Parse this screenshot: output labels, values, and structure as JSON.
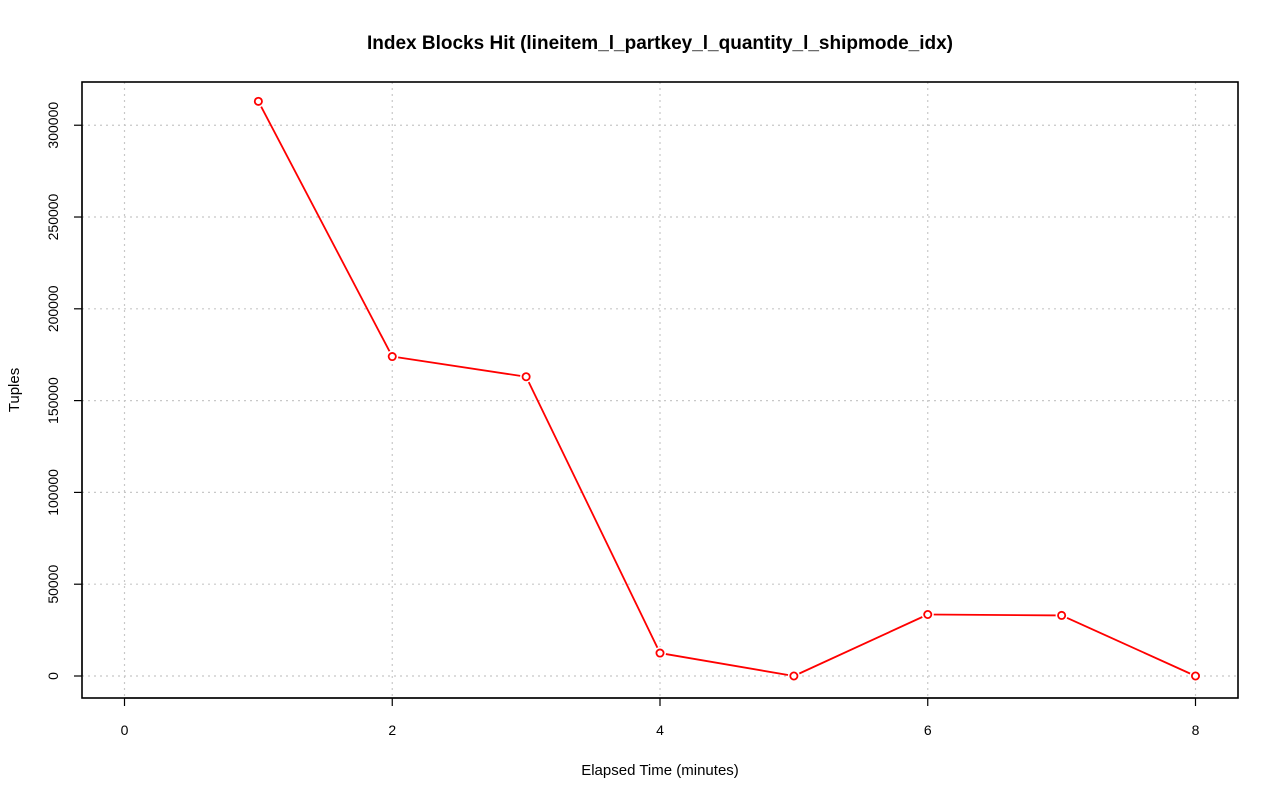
{
  "chart_data": {
    "type": "line",
    "title": "Index Blocks Hit (lineitem_l_partkey_l_quantity_l_shipmode_idx)",
    "xlabel": "Elapsed Time (minutes)",
    "ylabel": "Tuples",
    "xlim": [
      0,
      8
    ],
    "ylim": [
      0,
      320000
    ],
    "x_ticks": [
      0,
      2,
      4,
      6,
      8
    ],
    "y_ticks": [
      0,
      50000,
      100000,
      150000,
      200000,
      250000,
      300000
    ],
    "x_tick_labels": [
      "0",
      "2",
      "4",
      "6",
      "8"
    ],
    "y_tick_labels": [
      "0",
      "50000",
      "100000",
      "150000",
      "200000",
      "250000",
      "300000"
    ],
    "grid": true,
    "series": [
      {
        "color": "#ff0000",
        "marker": "open-circle",
        "x": [
          1,
          2,
          3,
          4,
          5,
          6,
          7,
          8
        ],
        "y": [
          313000,
          174000,
          163000,
          12500,
          0,
          33500,
          33000,
          0
        ]
      }
    ]
  }
}
